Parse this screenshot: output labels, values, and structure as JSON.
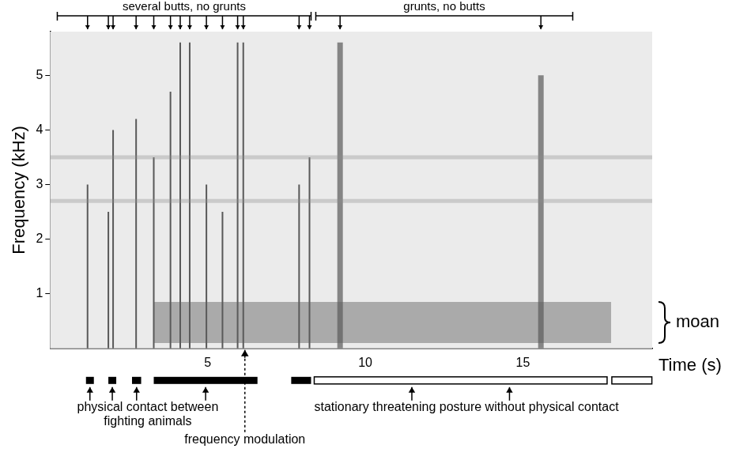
{
  "chart_data": {
    "type": "spectrogram",
    "y_label": "Frequency (kHz)",
    "x_label": "Time (s)",
    "xlim": [
      0,
      19.1
    ],
    "xticks": [
      5,
      10,
      15
    ],
    "ylim": [
      0,
      5.8
    ],
    "yticks": [
      1,
      2,
      3,
      4,
      5
    ],
    "grid": false,
    "butts": {
      "label": "several butts, no grunts",
      "span": [
        0.23,
        8.28
      ],
      "times": [
        1.19,
        1.85,
        2.0,
        2.73,
        3.29,
        3.82,
        4.13,
        4.43,
        4.96,
        5.47,
        5.95,
        6.13,
        7.9,
        8.23
      ],
      "top_khz": [
        3.0,
        2.5,
        4.0,
        4.2,
        3.5,
        4.7,
        5.6,
        5.6,
        3.0,
        2.5,
        5.6,
        5.6,
        3.0,
        3.5
      ]
    },
    "grunts": {
      "label": "grunts, no butts",
      "span": [
        8.43,
        16.58
      ],
      "times": [
        9.2,
        15.57
      ],
      "top_khz": [
        5.6,
        5.0
      ]
    },
    "moan": {
      "label": "moan",
      "time": [
        3.3,
        17.8
      ],
      "freq_khz": [
        0.1,
        0.85
      ]
    },
    "background_bands_khz": [
      2.7,
      3.5
    ],
    "physical_contact": {
      "label": [
        "physical contact between",
        "fighting animals"
      ],
      "intervals": [
        [
          1.14,
          1.39
        ],
        [
          1.85,
          2.1
        ],
        [
          2.6,
          2.89
        ],
        [
          3.29,
          6.58
        ],
        [
          7.65,
          8.28
        ]
      ]
    },
    "threatening_posture": {
      "label": "stationary threatening posture without physical contact",
      "intervals": [
        [
          8.38,
          17.67
        ],
        [
          17.82,
          19.09
        ]
      ]
    },
    "frequency_modulation": {
      "label": "frequency modulation",
      "time": 6.18
    }
  }
}
